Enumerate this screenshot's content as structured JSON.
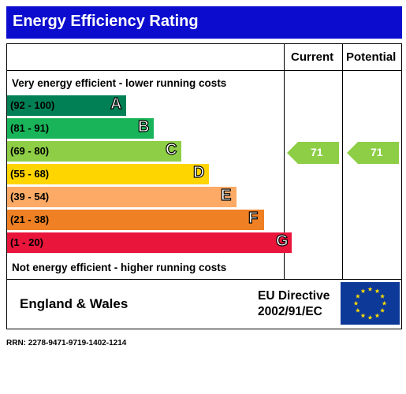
{
  "title": "Energy Efficiency Rating",
  "columns": {
    "current": "Current",
    "potential": "Potential"
  },
  "top_caption": "Very energy efficient - lower running costs",
  "bottom_caption": "Not energy efficient - higher running costs",
  "region": "England & Wales",
  "directive": {
    "line1": "EU Directive",
    "line2": "2002/91/EC"
  },
  "rrn": "RRN: 2278-9471-9719-1402-1214",
  "colors": {
    "title_bg": "#0c0ccf",
    "eu_flag": "#0d3a99",
    "eu_star": "#ffdd00"
  },
  "chart_data": {
    "type": "bar",
    "bands": [
      {
        "letter": "A",
        "range": "(92 - 100)",
        "color": "#008054"
      },
      {
        "letter": "B",
        "range": "(81 - 91)",
        "color": "#19b459"
      },
      {
        "letter": "C",
        "range": "(69 - 80)",
        "color": "#8dce46"
      },
      {
        "letter": "D",
        "range": "(55 - 68)",
        "color": "#ffd500"
      },
      {
        "letter": "E",
        "range": "(39 - 54)",
        "color": "#fcaa65"
      },
      {
        "letter": "F",
        "range": "(21 - 38)",
        "color": "#ef8023"
      },
      {
        "letter": "G",
        "range": "(1 - 20)",
        "color": "#e9153b"
      }
    ],
    "current": {
      "value": "71",
      "band": "C",
      "color": "#8dce46"
    },
    "potential": {
      "value": "71",
      "band": "C",
      "color": "#8dce46"
    }
  }
}
